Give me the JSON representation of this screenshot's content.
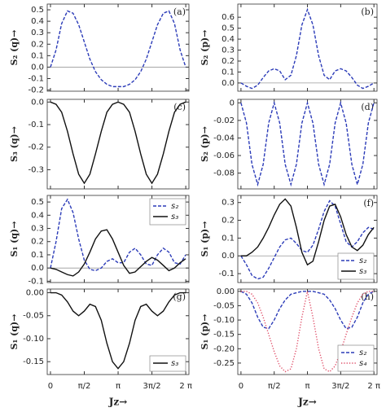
{
  "chart_data": [
    {
      "type": "line",
      "panel_label": "(a)",
      "ylabel": "S₂ (q)→",
      "x": [
        0,
        0.26,
        0.52,
        0.79,
        1.05,
        1.31,
        1.57,
        1.83,
        2.09,
        2.36,
        2.62,
        2.88,
        3.14,
        3.4,
        3.67,
        3.93,
        4.19,
        4.45,
        4.71,
        4.97,
        5.24,
        5.5,
        5.76,
        6.02,
        6.28
      ],
      "values": [
        0,
        0.15,
        0.38,
        0.49,
        0.47,
        0.37,
        0.22,
        0.07,
        -0.04,
        -0.11,
        -0.15,
        -0.17,
        -0.17,
        -0.17,
        -0.15,
        -0.11,
        -0.04,
        0.07,
        0.22,
        0.37,
        0.47,
        0.49,
        0.38,
        0.15,
        0
      ],
      "color": "#2b3bb8",
      "style": "dashed",
      "zero_line": true,
      "xlim": [
        -0.15,
        6.43
      ],
      "xticks": [
        0,
        1.5708,
        3.1416,
        4.7124,
        6.2832
      ],
      "show_xtick_labels": false,
      "ylim": [
        -0.21,
        0.55
      ],
      "yticks": [
        -0.2,
        -0.1,
        {
          "value": 0,
          "label": "0.0"
        },
        0.1,
        0.2,
        0.3,
        0.4,
        0.5
      ]
    },
    {
      "type": "line",
      "panel_label": "(b)",
      "ylabel": "S₂ (p)→",
      "x": [
        0,
        0.26,
        0.52,
        0.79,
        1.05,
        1.31,
        1.57,
        1.83,
        2.09,
        2.36,
        2.62,
        2.88,
        3.14,
        3.4,
        3.67,
        3.93,
        4.19,
        4.45,
        4.71,
        4.97,
        5.24,
        5.5,
        5.76,
        6.02,
        6.28
      ],
      "values": [
        0,
        -0.03,
        -0.05,
        -0.02,
        0.05,
        0.11,
        0.13,
        0.11,
        0.03,
        0.07,
        0.25,
        0.53,
        0.67,
        0.53,
        0.25,
        0.07,
        0.03,
        0.11,
        0.13,
        0.11,
        0.05,
        -0.02,
        -0.05,
        -0.03,
        0
      ],
      "color": "#2b3bb8",
      "style": "dashed",
      "zero_line": true,
      "xlim": [
        -0.15,
        6.43
      ],
      "xticks": [
        0,
        1.5708,
        3.1416,
        4.7124,
        6.2832
      ],
      "show_xtick_labels": false,
      "ylim": [
        -0.075,
        0.72
      ],
      "yticks": [
        {
          "value": 0,
          "label": "0.0"
        },
        0.1,
        0.2,
        0.3,
        0.4,
        0.5,
        0.6
      ]
    },
    {
      "type": "line",
      "panel_label": "(c)",
      "ylabel": "S₃ (q)→",
      "x": [
        0,
        0.26,
        0.52,
        0.79,
        1.05,
        1.31,
        1.57,
        1.83,
        2.09,
        2.36,
        2.62,
        2.88,
        3.14,
        3.4,
        3.67,
        3.93,
        4.19,
        4.45,
        4.71,
        4.97,
        5.24,
        5.5,
        5.76,
        6.02,
        6.28
      ],
      "values": [
        0,
        -0.01,
        -0.045,
        -0.13,
        -0.23,
        -0.32,
        -0.36,
        -0.32,
        -0.23,
        -0.13,
        -0.045,
        -0.01,
        0,
        -0.01,
        -0.045,
        -0.13,
        -0.23,
        -0.32,
        -0.36,
        -0.32,
        -0.23,
        -0.13,
        -0.045,
        -0.01,
        0
      ],
      "color": "#111111",
      "style": "solid",
      "zero_line": false,
      "xlim": [
        -0.15,
        6.43
      ],
      "xticks": [
        0,
        1.5708,
        3.1416,
        4.7124,
        6.2832
      ],
      "show_xtick_labels": false,
      "ylim": [
        -0.385,
        0.012
      ],
      "yticks": [
        {
          "value": 0,
          "label": "0.0"
        },
        -0.1,
        -0.2,
        -0.3
      ]
    },
    {
      "type": "line",
      "panel_label": "(d)",
      "ylabel": "S₂ (p)→",
      "x": [
        0,
        0.26,
        0.52,
        0.79,
        1.05,
        1.31,
        1.57,
        1.83,
        2.09,
        2.36,
        2.62,
        2.88,
        3.14,
        3.4,
        3.67,
        3.93,
        4.19,
        4.45,
        4.71,
        4.97,
        5.24,
        5.5,
        5.76,
        6.02,
        6.28
      ],
      "values": [
        0,
        -0.023,
        -0.07,
        -0.093,
        -0.07,
        -0.023,
        0,
        -0.023,
        -0.07,
        -0.093,
        -0.07,
        -0.023,
        0,
        -0.023,
        -0.07,
        -0.093,
        -0.07,
        -0.023,
        0,
        -0.023,
        -0.07,
        -0.093,
        -0.07,
        -0.023,
        0
      ],
      "color": "#2b3bb8",
      "style": "dashed",
      "zero_line": false,
      "xlim": [
        -0.15,
        6.43
      ],
      "xticks": [
        0,
        1.5708,
        3.1416,
        4.7124,
        6.2832
      ],
      "show_xtick_labels": false,
      "ylim": [
        -0.098,
        0.004
      ],
      "yticks": [
        0,
        -0.02,
        -0.04,
        -0.06,
        -0.08
      ]
    },
    {
      "type": "line",
      "panel_label": "(e)",
      "ylabel": "S₁ (q)→",
      "legend": "upper right",
      "x": [
        0,
        0.26,
        0.52,
        0.79,
        1.05,
        1.31,
        1.57,
        1.83,
        2.09,
        2.36,
        2.62,
        2.88,
        3.14,
        3.4,
        3.67,
        3.93,
        4.19,
        4.45,
        4.71,
        4.97,
        5.24,
        5.5,
        5.76,
        6.02,
        6.28
      ],
      "series": [
        {
          "name": "s₂",
          "color": "#2b3bb8",
          "style": "dashed",
          "values": [
            0,
            0.2,
            0.45,
            0.52,
            0.42,
            0.22,
            0.06,
            -0.01,
            -0.02,
            0,
            0.05,
            0.07,
            0.04,
            0.04,
            0.12,
            0.15,
            0.1,
            0.03,
            0.02,
            0.1,
            0.15,
            0.12,
            0.04,
            0.03,
            0.1
          ]
        },
        {
          "name": "s₃",
          "color": "#111111",
          "style": "solid",
          "values": [
            0,
            -0.01,
            -0.03,
            -0.05,
            -0.06,
            -0.03,
            0.03,
            0.12,
            0.22,
            0.28,
            0.29,
            0.22,
            0.12,
            0.02,
            -0.04,
            -0.03,
            0.01,
            0.05,
            0.08,
            0.06,
            0.02,
            -0.02,
            0,
            0.04,
            0.07
          ]
        }
      ],
      "zero_line": true,
      "xlim": [
        -0.15,
        6.43
      ],
      "xticks": [
        0,
        1.5708,
        3.1416,
        4.7124,
        6.2832
      ],
      "show_xtick_labels": false,
      "ylim": [
        -0.11,
        0.55
      ],
      "yticks": [
        -0.1,
        {
          "value": 0,
          "label": "0.0"
        },
        0.1,
        0.2,
        0.3,
        0.4,
        0.5
      ]
    },
    {
      "type": "line",
      "panel_label": "(f)",
      "ylabel": "S₁ (p)→",
      "legend": "lower right",
      "x": [
        0,
        0.26,
        0.52,
        0.79,
        1.05,
        1.31,
        1.57,
        1.83,
        2.09,
        2.36,
        2.62,
        2.88,
        3.14,
        3.4,
        3.67,
        3.93,
        4.19,
        4.45,
        4.71,
        4.97,
        5.24,
        5.5,
        5.76,
        6.02,
        6.28
      ],
      "series": [
        {
          "name": "s₂",
          "color": "#2b3bb8",
          "style": "dashed",
          "values": [
            0,
            -0.05,
            -0.11,
            -0.13,
            -0.12,
            -0.07,
            -0.01,
            0.05,
            0.09,
            0.1,
            0.07,
            0.03,
            0.02,
            0.06,
            0.15,
            0.25,
            0.31,
            0.28,
            0.18,
            0.08,
            0.05,
            0.08,
            0.13,
            0.16,
            0.15
          ]
        },
        {
          "name": "s₃",
          "color": "#111111",
          "style": "solid",
          "values": [
            0,
            0,
            0.02,
            0.05,
            0.1,
            0.16,
            0.23,
            0.29,
            0.32,
            0.28,
            0.16,
            0.02,
            -0.05,
            -0.03,
            0.08,
            0.2,
            0.28,
            0.29,
            0.22,
            0.12,
            0.05,
            0.03,
            0.06,
            0.12,
            0.16
          ]
        }
      ],
      "zero_line": true,
      "xlim": [
        -0.15,
        6.43
      ],
      "xticks": [
        0,
        1.5708,
        3.1416,
        4.7124,
        6.2832
      ],
      "show_xtick_labels": false,
      "ylim": [
        -0.15,
        0.34
      ],
      "yticks": [
        -0.1,
        {
          "value": 0,
          "label": "0.0"
        },
        0.1,
        0.2,
        0.3
      ]
    },
    {
      "type": "line",
      "panel_label": "(g)",
      "ylabel": "S₁ (q)→",
      "xlabel": "Jz→",
      "legend": "lower right",
      "x": [
        0,
        0.26,
        0.52,
        0.79,
        1.05,
        1.31,
        1.57,
        1.83,
        2.09,
        2.36,
        2.62,
        2.88,
        3.14,
        3.4,
        3.67,
        3.93,
        4.19,
        4.45,
        4.71,
        4.97,
        5.24,
        5.5,
        5.76,
        6.02,
        6.28
      ],
      "series": [
        {
          "name": "s₃",
          "color": "#111111",
          "style": "solid",
          "values": [
            0,
            0,
            -0.005,
            -0.02,
            -0.04,
            -0.05,
            -0.04,
            -0.025,
            -0.03,
            -0.06,
            -0.11,
            -0.15,
            -0.165,
            -0.15,
            -0.11,
            -0.06,
            -0.03,
            -0.025,
            -0.04,
            -0.05,
            -0.04,
            -0.02,
            -0.005,
            0,
            0
          ]
        }
      ],
      "zero_line": false,
      "xlim": [
        -0.15,
        6.43
      ],
      "xticks": [
        0,
        {
          "value": 1.5708,
          "label": "π/2"
        },
        {
          "value": 3.1416,
          "label": "π"
        },
        {
          "value": 4.7124,
          "label": "3π/2"
        },
        {
          "value": 6.2832,
          "label": "2 π"
        }
      ],
      "show_xtick_labels": true,
      "ylim": [
        -0.178,
        0.008
      ],
      "yticks": [
        {
          "value": 0,
          "label": "0.00"
        },
        -0.05,
        {
          "value": -0.1,
          "label": "-0.10"
        },
        -0.15
      ]
    },
    {
      "type": "line",
      "panel_label": "(h)",
      "ylabel": "S₁ (p)→",
      "xlabel": "Jz→",
      "legend": "lower right",
      "x": [
        0,
        0.26,
        0.52,
        0.79,
        1.05,
        1.31,
        1.57,
        1.83,
        2.09,
        2.36,
        2.62,
        2.88,
        3.14,
        3.4,
        3.67,
        3.93,
        4.19,
        4.45,
        4.71,
        4.97,
        5.24,
        5.5,
        5.76,
        6.02,
        6.28
      ],
      "series": [
        {
          "name": "s₂",
          "color": "#2b3bb8",
          "style": "dashed",
          "values": [
            0,
            -0.01,
            -0.04,
            -0.09,
            -0.125,
            -0.13,
            -0.1,
            -0.06,
            -0.03,
            -0.01,
            -0.005,
            0,
            0,
            0,
            -0.005,
            -0.01,
            -0.03,
            -0.06,
            -0.1,
            -0.13,
            -0.125,
            -0.09,
            -0.04,
            -0.01,
            0
          ]
        },
        {
          "name": "s₄",
          "color": "#e0506a",
          "style": "dotted",
          "values": [
            0,
            0,
            -0.01,
            -0.04,
            -0.09,
            -0.15,
            -0.21,
            -0.26,
            -0.28,
            -0.27,
            -0.2,
            -0.09,
            0,
            -0.09,
            -0.2,
            -0.27,
            -0.28,
            -0.26,
            -0.21,
            -0.15,
            -0.09,
            -0.04,
            -0.01,
            0,
            0
          ]
        }
      ],
      "zero_line": false,
      "xlim": [
        -0.15,
        6.43
      ],
      "xticks": [
        0,
        {
          "value": 1.5708,
          "label": "π/2"
        },
        {
          "value": 3.1416,
          "label": "π"
        },
        {
          "value": 4.7124,
          "label": "3π/2"
        },
        {
          "value": 6.2832,
          "label": "2 π"
        }
      ],
      "show_xtick_labels": true,
      "ylim": [
        -0.29,
        0.008
      ],
      "yticks": [
        {
          "value": 0,
          "label": "0.00"
        },
        -0.05,
        {
          "value": -0.1,
          "label": "-0.10"
        },
        -0.15,
        {
          "value": -0.2,
          "label": "-0.20"
        },
        -0.25
      ]
    }
  ]
}
